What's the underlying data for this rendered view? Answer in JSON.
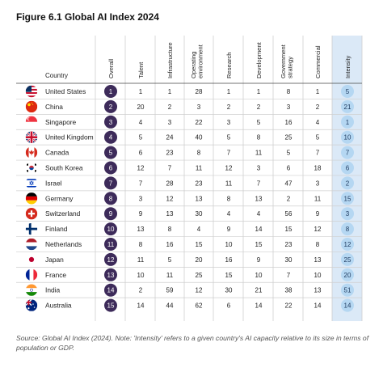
{
  "title": "Figure 6.1 Global AI Index 2024",
  "note": "Source: Global AI Index (2024). Note: 'Intensity' refers to a given country's AI capacity relative to its size in terms of population or GDP.",
  "colors": {
    "overall_circle": "#3d2b5a",
    "intensity_column": "#dbe9f7",
    "intensity_circle": "#b5d7f2",
    "grid": "#cfcfcf"
  },
  "chart_data": {
    "type": "table",
    "row_header": "Country",
    "columns": [
      "Overall",
      "Talent",
      "Infrastructure",
      "Operating environment",
      "Research",
      "Development",
      "Government strategy",
      "Commercial",
      "Intensity"
    ],
    "rows": [
      {
        "country": "United States",
        "flag": "us-flag-icon",
        "values": [
          1,
          1,
          1,
          28,
          1,
          1,
          8,
          1,
          5
        ]
      },
      {
        "country": "China",
        "flag": "cn-flag-icon",
        "values": [
          2,
          20,
          2,
          3,
          2,
          2,
          3,
          2,
          21
        ]
      },
      {
        "country": "Singapore",
        "flag": "sg-flag-icon",
        "values": [
          3,
          4,
          3,
          22,
          3,
          5,
          16,
          4,
          1
        ]
      },
      {
        "country": "United Kingdom",
        "flag": "uk-flag-icon",
        "values": [
          4,
          5,
          24,
          40,
          5,
          8,
          25,
          5,
          10
        ]
      },
      {
        "country": "Canada",
        "flag": "ca-flag-icon",
        "values": [
          5,
          6,
          23,
          8,
          7,
          11,
          5,
          7,
          7
        ]
      },
      {
        "country": "South Korea",
        "flag": "kr-flag-icon",
        "values": [
          6,
          12,
          7,
          11,
          12,
          3,
          6,
          18,
          6
        ]
      },
      {
        "country": "Israel",
        "flag": "il-flag-icon",
        "values": [
          7,
          7,
          28,
          23,
          11,
          7,
          47,
          3,
          2
        ]
      },
      {
        "country": "Germany",
        "flag": "de-flag-icon",
        "values": [
          8,
          3,
          12,
          13,
          8,
          13,
          2,
          11,
          15
        ]
      },
      {
        "country": "Switzerland",
        "flag": "ch-flag-icon",
        "values": [
          9,
          9,
          13,
          30,
          4,
          4,
          56,
          9,
          3
        ]
      },
      {
        "country": "Finland",
        "flag": "fi-flag-icon",
        "values": [
          10,
          13,
          8,
          4,
          9,
          14,
          15,
          12,
          8
        ]
      },
      {
        "country": "Netherlands",
        "flag": "nl-flag-icon",
        "values": [
          11,
          8,
          16,
          15,
          10,
          15,
          23,
          8,
          12
        ]
      },
      {
        "country": "Japan",
        "flag": "jp-flag-icon",
        "values": [
          12,
          11,
          5,
          20,
          16,
          9,
          30,
          13,
          25
        ]
      },
      {
        "country": "France",
        "flag": "fr-flag-icon",
        "values": [
          13,
          10,
          11,
          25,
          15,
          10,
          7,
          10,
          20
        ]
      },
      {
        "country": "India",
        "flag": "in-flag-icon",
        "values": [
          14,
          2,
          59,
          12,
          30,
          21,
          38,
          13,
          51
        ]
      },
      {
        "country": "Australia",
        "flag": "au-flag-icon",
        "values": [
          15,
          14,
          44,
          62,
          6,
          14,
          22,
          14,
          14
        ]
      }
    ]
  }
}
